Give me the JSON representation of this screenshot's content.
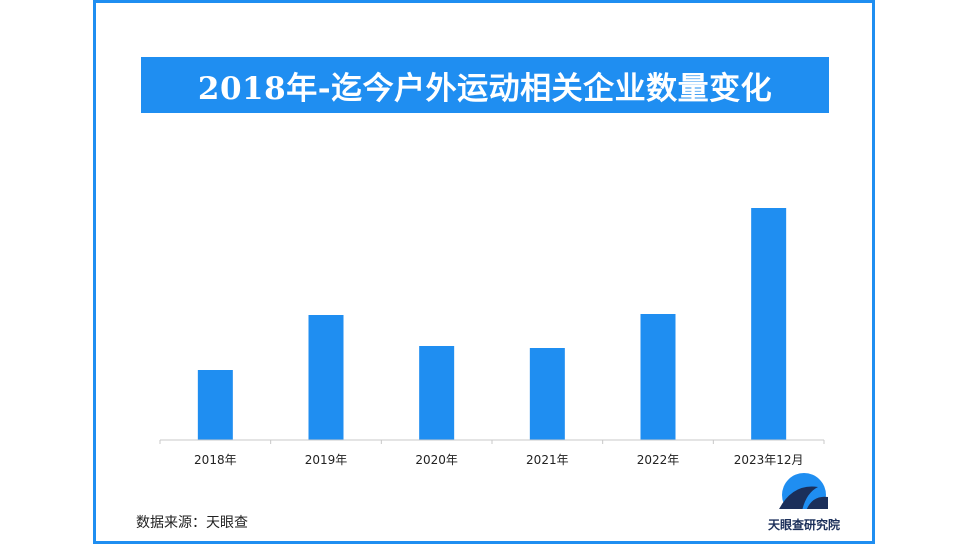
{
  "header": {
    "title": "2018年-迄今户外运动相关企业数量变化"
  },
  "footer": {
    "source": "数据来源：天眼查",
    "logo_text": "天眼查研究院"
  },
  "colors": {
    "frame": "#1f8ef1",
    "bar": "#1f8ef1",
    "logo_dark": "#1b2f5a"
  },
  "chart_data": {
    "type": "bar",
    "title": "2018年-迄今户外运动相关企业数量变化",
    "categories": [
      "2018年",
      "2019年",
      "2020年",
      "2021年",
      "2022年",
      "2023年12月"
    ],
    "values": [
      70,
      125,
      94,
      92,
      126,
      232
    ],
    "ylim": [
      0,
      240
    ],
    "grid": false,
    "xlabel": "",
    "ylabel": ""
  }
}
